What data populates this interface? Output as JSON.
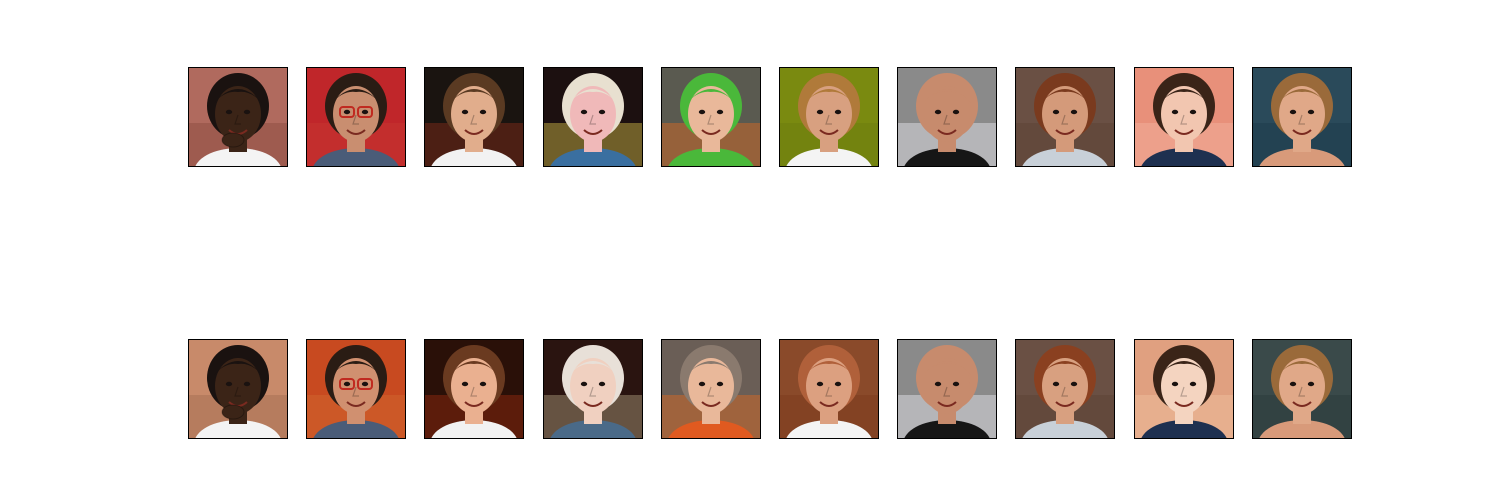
{
  "figure": {
    "rows": [
      {
        "row_name": "top-row",
        "tiles": [
          {
            "bg": "#b06a5e",
            "skin": "#3b2417",
            "hair": "#1a1210",
            "shirt": "#f4f4f4",
            "accent": "#8a4a3e",
            "icon": "child-face-icon"
          },
          {
            "bg": "#c0262a",
            "skin": "#c98e70",
            "hair": "#2a1c14",
            "shirt": "#4a5c78",
            "accent": "#c83a30",
            "icon": "boy-with-glasses-icon"
          },
          {
            "bg": "#1a1410",
            "skin": "#e1ad8c",
            "hair": "#5a3a22",
            "shirt": "#f2f2f2",
            "accent": "#8a2c1a",
            "icon": "smiling-boy-icon"
          },
          {
            "bg": "#1c1010",
            "skin": "#f0b9b9",
            "hair": "#e8e0d0",
            "shirt": "#3a6fa0",
            "accent": "#d8c04a",
            "icon": "blond-person-icon"
          },
          {
            "bg": "#5a5a50",
            "skin": "#e9b89a",
            "hair": "#4ab83a",
            "shirt": "#4ab83a",
            "accent": "#e06a20",
            "icon": "child-green-hat-icon"
          },
          {
            "bg": "#7a8a10",
            "skin": "#d8a080",
            "hair": "#b07a3a",
            "shirt": "#f4f4f4",
            "accent": "#6a7a10",
            "icon": "smiling-woman-icon"
          },
          {
            "bg": "#8a8a8a",
            "skin": "#c78b6d",
            "hair": "#c78b6d",
            "shirt": "#161616",
            "accent": "#e8e8f0",
            "icon": "bald-man-icon"
          },
          {
            "bg": "#6a5044",
            "skin": "#d49a7a",
            "hair": "#7a3a1e",
            "shirt": "#c8d0d8",
            "accent": "#5a4034",
            "icon": "woman-scarf-icon"
          },
          {
            "bg": "#e8907a",
            "skin": "#f2c6b0",
            "hair": "#3a2418",
            "shirt": "#1e3050",
            "accent": "#f4b4a0",
            "icon": "winking-woman-icon"
          },
          {
            "bg": "#2a4a5a",
            "skin": "#e0a888",
            "hair": "#9a6a3a",
            "shirt": "#d89a7a",
            "accent": "#1a3a4a",
            "icon": "squinting-child-icon"
          }
        ]
      },
      {
        "row_name": "bottom-row",
        "tiles": [
          {
            "bg": "#c88a6a",
            "skin": "#3b2417",
            "hair": "#1a1210",
            "shirt": "#f4f4f4",
            "accent": "#a06a50",
            "icon": "child-face-icon"
          },
          {
            "bg": "#c84a20",
            "skin": "#d09070",
            "hair": "#2a1c14",
            "shirt": "#4a5c78",
            "accent": "#d06a30",
            "icon": "boy-with-glasses-icon"
          },
          {
            "bg": "#2a1008",
            "skin": "#eab090",
            "hair": "#6a3a20",
            "shirt": "#f2f2f2",
            "accent": "#9a2c10",
            "icon": "smiling-boy-icon"
          },
          {
            "bg": "#2a1410",
            "skin": "#f0d0c0",
            "hair": "#e8e0d8",
            "shirt": "#4a6a88",
            "accent": "#b0a080",
            "icon": "blond-person-icon"
          },
          {
            "bg": "#6a5e56",
            "skin": "#e9b89a",
            "hair": "#8a7a6e",
            "shirt": "#e05a20",
            "accent": "#e06a20",
            "icon": "child-green-hat-icon"
          },
          {
            "bg": "#8a4a2a",
            "skin": "#dca080",
            "hair": "#b0603a",
            "shirt": "#f4f4f4",
            "accent": "#7a3a1a",
            "icon": "smiling-woman-icon"
          },
          {
            "bg": "#8a8a8a",
            "skin": "#c78b6d",
            "hair": "#c78b6d",
            "shirt": "#161616",
            "accent": "#e8e8f0",
            "icon": "bald-man-icon"
          },
          {
            "bg": "#6a5044",
            "skin": "#d8a080",
            "hair": "#8a4020",
            "shirt": "#c8d0d8",
            "accent": "#5a4034",
            "icon": "woman-scarf-icon"
          },
          {
            "bg": "#e0a080",
            "skin": "#f4d4c0",
            "hair": "#3a2418",
            "shirt": "#1e3050",
            "accent": "#f0c0a0",
            "icon": "winking-woman-icon"
          },
          {
            "bg": "#3a4a4a",
            "skin": "#e0a888",
            "hair": "#9a6a3a",
            "shirt": "#d89a7a",
            "accent": "#2a3a3a",
            "icon": "squinting-child-icon"
          }
        ]
      }
    ]
  }
}
